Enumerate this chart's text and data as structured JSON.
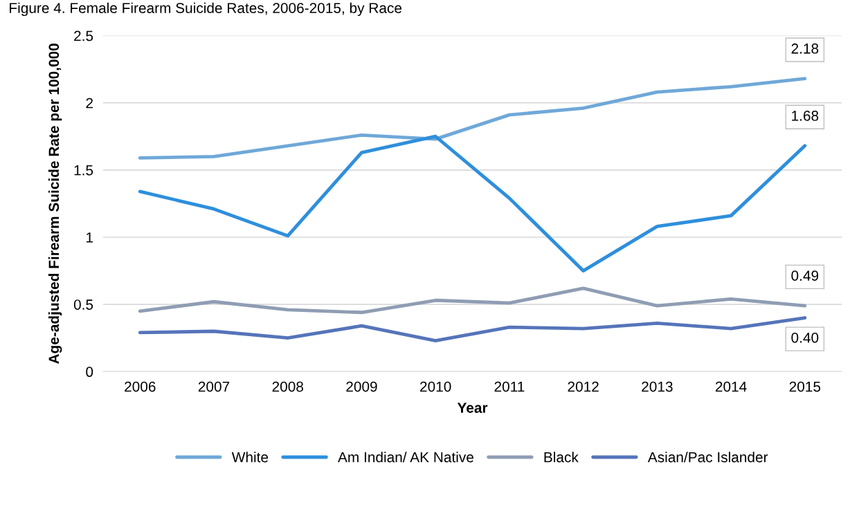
{
  "chart_data": {
    "type": "line",
    "title": "Figure 4. Female Firearm Suicide Rates, 2006-2015, by Race",
    "xlabel": "Year",
    "ylabel": "Age-adjusted Firearm Suicide Rate per 100,000",
    "categories": [
      "2006",
      "2007",
      "2008",
      "2009",
      "2010",
      "2011",
      "2012",
      "2013",
      "2014",
      "2015"
    ],
    "ylim": [
      0,
      2.5
    ],
    "yticks": [
      0,
      0.5,
      1,
      {
        "value": 1.5,
        "label": "1.5"
      },
      2,
      {
        "value": 2.5,
        "label": "2.5"
      }
    ],
    "grid": "y",
    "legend": "bottom",
    "marker": "none",
    "line_style": "solid",
    "series": [
      {
        "name": "White",
        "color": "#6fa8d8",
        "values": [
          1.59,
          1.6,
          1.68,
          1.76,
          1.73,
          1.91,
          1.96,
          2.08,
          2.12,
          2.18
        ],
        "value_labels": [
          null,
          null,
          null,
          null,
          null,
          null,
          null,
          null,
          null,
          "2.18"
        ]
      },
      {
        "name": "Am Indian/ AK Native",
        "color": "#2e8fdc",
        "values": [
          1.34,
          1.21,
          1.01,
          1.63,
          1.75,
          1.29,
          0.75,
          1.08,
          1.16,
          1.68
        ],
        "value_labels": [
          null,
          null,
          null,
          null,
          null,
          null,
          null,
          null,
          null,
          "1.68"
        ]
      },
      {
        "name": "Black",
        "color": "#8f9db3",
        "values": [
          0.45,
          0.52,
          0.46,
          0.44,
          0.53,
          0.51,
          0.62,
          0.49,
          0.54,
          0.49
        ],
        "value_labels": [
          null,
          null,
          null,
          null,
          null,
          null,
          null,
          null,
          null,
          "0.49"
        ]
      },
      {
        "name": "Asian/Pac Islander",
        "color": "#5574ba",
        "values": [
          0.29,
          0.3,
          0.25,
          0.34,
          0.23,
          0.33,
          0.32,
          0.36,
          0.32,
          0.4
        ],
        "value_labels": [
          null,
          null,
          null,
          null,
          null,
          null,
          null,
          null,
          null,
          "0.40"
        ]
      }
    ]
  }
}
